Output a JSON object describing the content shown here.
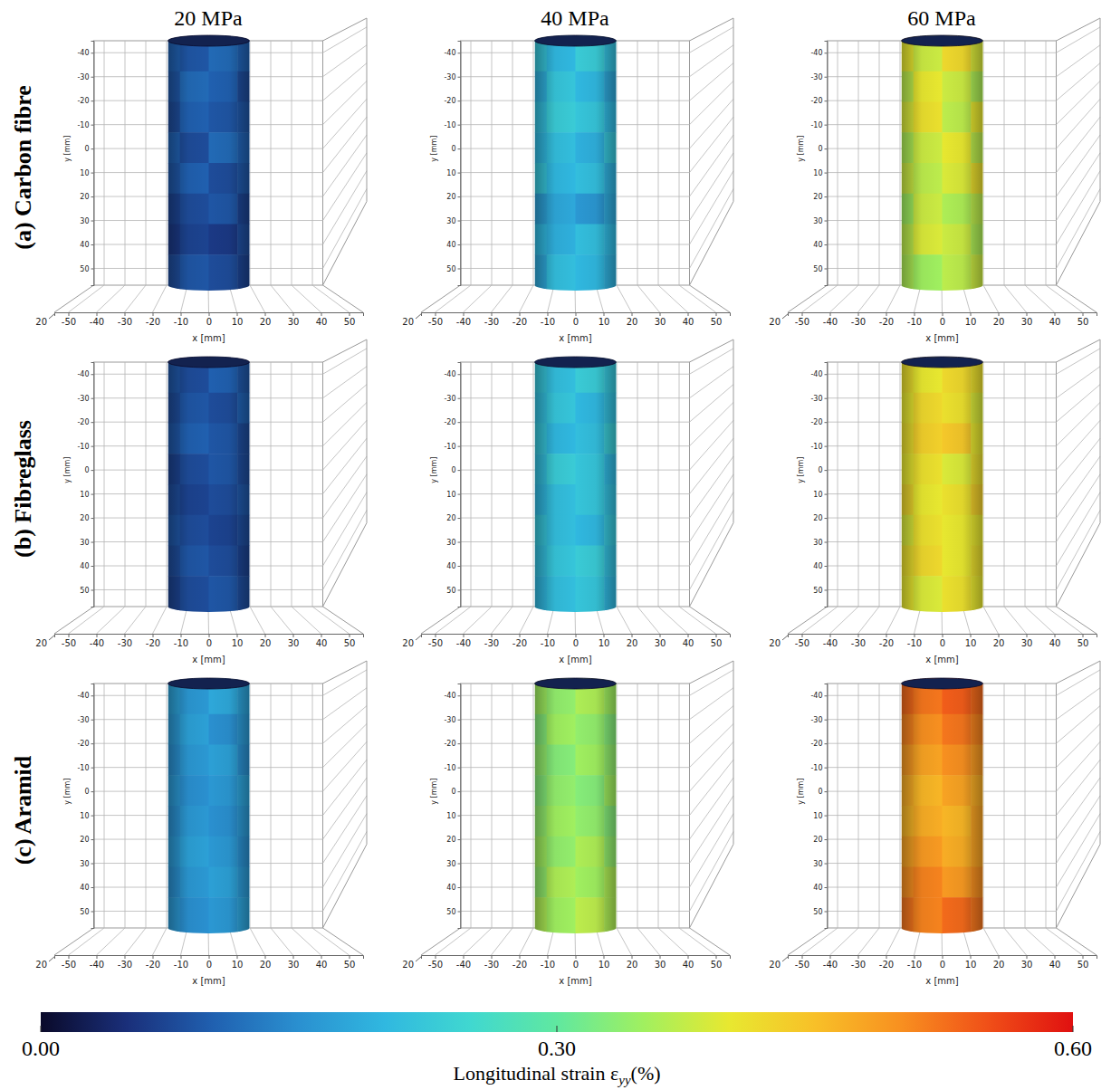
{
  "chart_data": {
    "type": "heatmap",
    "grid": true,
    "columns": [
      "20 MPa",
      "40 MPa",
      "60 MPa"
    ],
    "rows": [
      "(a) Carbon fibre",
      "(b) Fibreglass",
      "(c) Aramid"
    ],
    "xlabel": "x [mm]",
    "ylabel": "y [mm]",
    "xlim": [
      -55,
      55
    ],
    "ylim": [
      -45,
      57
    ],
    "xticks": [
      -50,
      -40,
      -30,
      -20,
      -10,
      0,
      10,
      20,
      30,
      40,
      50
    ],
    "yticks": [
      -40,
      -30,
      -20,
      -10,
      0,
      10,
      20,
      30,
      40,
      50
    ],
    "zticks": [
      20
    ],
    "cylinder_x": [
      -14.5,
      14.5
    ],
    "cylinder_y": [
      -45,
      57
    ],
    "colorbar": {
      "range": [
        0,
        0.6
      ],
      "ticks": [
        {
          "value": 0,
          "label": "0.00"
        },
        {
          "value": 0.3,
          "label": "0.30"
        },
        {
          "value": 0.6,
          "label": "0.60"
        }
      ],
      "label": "Longitudinal strain ε",
      "label_sub": "yy",
      "label_end": "(%)"
    },
    "panels": [
      [
        {
          "cells": [
            [
              0.1,
              0.09,
              0.11,
              0.1
            ],
            [
              0.09,
              0.11,
              0.1,
              0.08
            ],
            [
              0.08,
              0.1,
              0.09,
              0.09
            ],
            [
              0.1,
              0.08,
              0.11,
              0.1
            ],
            [
              0.09,
              0.1,
              0.08,
              0.09
            ],
            [
              0.07,
              0.08,
              0.09,
              0.07
            ],
            [
              0.06,
              0.07,
              0.06,
              0.08
            ],
            [
              0.08,
              0.09,
              0.08,
              0.07
            ]
          ]
        },
        {
          "cells": [
            [
              0.22,
              0.2,
              0.23,
              0.21
            ],
            [
              0.19,
              0.22,
              0.2,
              0.18
            ],
            [
              0.21,
              0.23,
              0.22,
              0.2
            ],
            [
              0.2,
              0.21,
              0.19,
              0.22
            ],
            [
              0.22,
              0.2,
              0.21,
              0.19
            ],
            [
              0.17,
              0.18,
              0.16,
              0.18
            ],
            [
              0.2,
              0.19,
              0.21,
              0.2
            ],
            [
              0.18,
              0.21,
              0.2,
              0.19
            ]
          ]
        },
        {
          "cells": [
            [
              0.4,
              0.38,
              0.42,
              0.39
            ],
            [
              0.37,
              0.4,
              0.38,
              0.36
            ],
            [
              0.39,
              0.41,
              0.37,
              0.4
            ],
            [
              0.36,
              0.38,
              0.4,
              0.37
            ],
            [
              0.38,
              0.37,
              0.39,
              0.41
            ],
            [
              0.35,
              0.38,
              0.36,
              0.37
            ],
            [
              0.37,
              0.39,
              0.38,
              0.36
            ],
            [
              0.36,
              0.35,
              0.37,
              0.38
            ]
          ]
        }
      ],
      [
        {
          "cells": [
            [
              0.09,
              0.08,
              0.1,
              0.09
            ],
            [
              0.08,
              0.09,
              0.08,
              0.1
            ],
            [
              0.09,
              0.1,
              0.09,
              0.08
            ],
            [
              0.07,
              0.08,
              0.09,
              0.08
            ],
            [
              0.08,
              0.07,
              0.08,
              0.09
            ],
            [
              0.09,
              0.08,
              0.07,
              0.08
            ],
            [
              0.08,
              0.09,
              0.08,
              0.07
            ],
            [
              0.07,
              0.08,
              0.09,
              0.08
            ]
          ]
        },
        {
          "cells": [
            [
              0.22,
              0.21,
              0.23,
              0.22
            ],
            [
              0.21,
              0.22,
              0.2,
              0.21
            ],
            [
              0.22,
              0.2,
              0.21,
              0.23
            ],
            [
              0.21,
              0.23,
              0.22,
              0.2
            ],
            [
              0.2,
              0.21,
              0.22,
              0.21
            ],
            [
              0.22,
              0.21,
              0.2,
              0.22
            ],
            [
              0.21,
              0.22,
              0.23,
              0.21
            ],
            [
              0.2,
              0.21,
              0.22,
              0.2
            ]
          ]
        },
        {
          "cells": [
            [
              0.41,
              0.4,
              0.42,
              0.41
            ],
            [
              0.4,
              0.42,
              0.41,
              0.39
            ],
            [
              0.41,
              0.43,
              0.44,
              0.4
            ],
            [
              0.4,
              0.41,
              0.39,
              0.41
            ],
            [
              0.42,
              0.4,
              0.41,
              0.43
            ],
            [
              0.39,
              0.41,
              0.4,
              0.4
            ],
            [
              0.41,
              0.42,
              0.4,
              0.41
            ],
            [
              0.4,
              0.39,
              0.41,
              0.4
            ]
          ]
        }
      ],
      [
        {
          "cells": [
            [
              0.17,
              0.16,
              0.18,
              0.17
            ],
            [
              0.16,
              0.17,
              0.15,
              0.16
            ],
            [
              0.15,
              0.16,
              0.17,
              0.15
            ],
            [
              0.16,
              0.15,
              0.16,
              0.17
            ],
            [
              0.15,
              0.16,
              0.15,
              0.16
            ],
            [
              0.16,
              0.17,
              0.16,
              0.15
            ],
            [
              0.15,
              0.16,
              0.17,
              0.16
            ],
            [
              0.16,
              0.15,
              0.16,
              0.17
            ]
          ]
        },
        {
          "cells": [
            [
              0.35,
              0.34,
              0.36,
              0.35
            ],
            [
              0.33,
              0.35,
              0.34,
              0.33
            ],
            [
              0.34,
              0.33,
              0.35,
              0.34
            ],
            [
              0.33,
              0.34,
              0.33,
              0.35
            ],
            [
              0.34,
              0.35,
              0.34,
              0.33
            ],
            [
              0.35,
              0.34,
              0.36,
              0.34
            ],
            [
              0.34,
              0.36,
              0.35,
              0.36
            ],
            [
              0.36,
              0.35,
              0.37,
              0.36
            ]
          ]
        },
        {
          "cells": [
            [
              0.53,
              0.52,
              0.54,
              0.53
            ],
            [
              0.51,
              0.5,
              0.52,
              0.51
            ],
            [
              0.49,
              0.48,
              0.5,
              0.49
            ],
            [
              0.47,
              0.46,
              0.48,
              0.47
            ],
            [
              0.46,
              0.47,
              0.46,
              0.48
            ],
            [
              0.48,
              0.49,
              0.47,
              0.48
            ],
            [
              0.5,
              0.51,
              0.49,
              0.5
            ],
            [
              0.52,
              0.51,
              0.53,
              0.52
            ]
          ]
        }
      ]
    ]
  }
}
